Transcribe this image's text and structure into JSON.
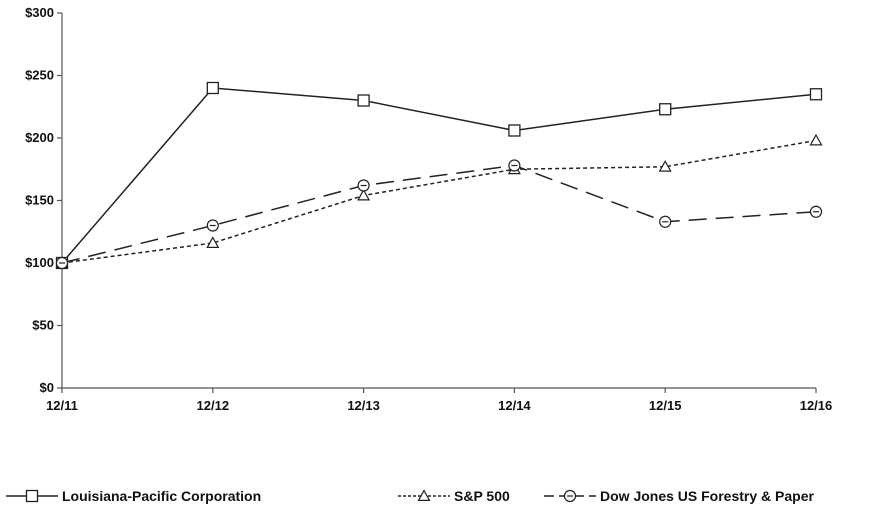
{
  "chart_data": {
    "type": "line",
    "x": [
      "12/11",
      "12/12",
      "12/13",
      "12/14",
      "12/15",
      "12/16"
    ],
    "ylim": [
      0,
      300
    ],
    "y_ticks": [
      0,
      50,
      100,
      150,
      200,
      250,
      300
    ],
    "y_tick_labels": [
      "$0",
      "$50",
      "$100",
      "$150",
      "$200",
      "$250",
      "$300"
    ],
    "grid": false,
    "legend_position": "bottom",
    "series": [
      {
        "name": "Louisiana-Pacific Corporation",
        "values": [
          100,
          240,
          230,
          206,
          223,
          235
        ],
        "marker": "square",
        "dash": "solid",
        "color": "#222222"
      },
      {
        "name": "S&P 500",
        "values": [
          100,
          116,
          154,
          175,
          177,
          198
        ],
        "marker": "triangle",
        "dash": "dotted",
        "color": "#222222"
      },
      {
        "name": "Dow Jones US Forestry & Paper",
        "values": [
          100,
          130,
          162,
          178,
          133,
          141
        ],
        "marker": "circle",
        "dash": "dashed",
        "color": "#222222"
      }
    ]
  }
}
